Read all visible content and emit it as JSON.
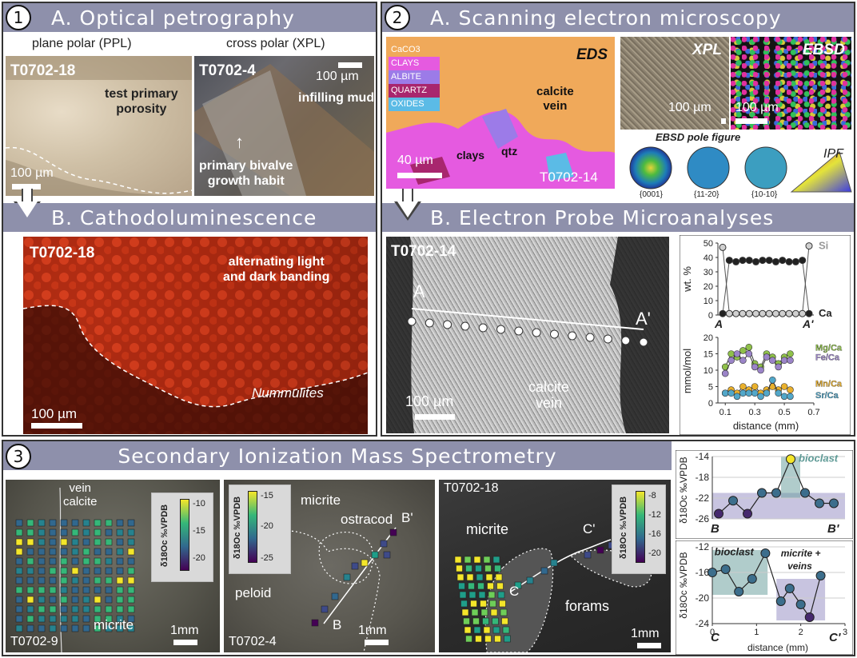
{
  "panel1": {
    "number": "1",
    "titleA": "A.  Optical petrography",
    "ppl_label": "plane polar (PPL)",
    "xpl_label": "cross polar (XPL)",
    "img1_sample": "T0702-18",
    "img1_text": "test primary\nporosity",
    "img1_scale": "100 µm",
    "img2_sample": "T0702-4",
    "img2_scale": "100 µm",
    "img2_text1": "infilling mud",
    "img2_text2": "primary bivalve\ngrowth habit",
    "titleB": "B.  Cathodoluminescence",
    "cl_sample": "T0702-18",
    "cl_text": "alternating light\nand dark banding",
    "cl_italic": "Nummulites",
    "cl_scale": "100 µm"
  },
  "panel2": {
    "number": "2",
    "titleA": "A.  Scanning electron microscopy",
    "eds_label": "EDS",
    "legend": [
      "CaCO3",
      "CLAYS",
      "ALBITE",
      "QUARTZ",
      "OXIDES"
    ],
    "legend_colors": [
      "#f0a95a",
      "#e55ae0",
      "#9c7be8",
      "#a8266e",
      "#5bbbe6"
    ],
    "eds_text_vein": "calcite\nvein",
    "eds_text_clays": "clays",
    "eds_text_qtz": "qtz",
    "eds_scale": "40 µm",
    "eds_sample": "T0702-14",
    "xpl_label": "XPL",
    "ebsd_label": "EBSD",
    "xpl_scale": "100 µm",
    "ebsd_scale": "100 µm",
    "pole_title": "EBSD pole figure",
    "pole_labels": [
      "{0001}",
      "{11-20}",
      "{10-10}"
    ],
    "ipf_label": "IPF",
    "titleB": "B.  Electron Probe Microanalyses",
    "epma_sample": "T0702-14",
    "epma_A": "A",
    "epma_A2": "A'",
    "epma_scale": "100 µm",
    "epma_vein": "calcite\nvein"
  },
  "panel3": {
    "number": "3",
    "title": "Secondary Ionization Mass Spectrometry",
    "img1_vein": "vein\ncalcite",
    "img1_micrite": "micrite",
    "img1_sample": "T0702-9",
    "img1_scale": "1mm",
    "img1_cbar_ticks": [
      "-10",
      "-15",
      "-20"
    ],
    "img2_micrite": "micrite",
    "img2_ostracod": "ostracod",
    "img2_peloid": "peloid",
    "img2_B": "B",
    "img2_B2": "B'",
    "img2_sample": "T0702-4",
    "img2_scale": "1mm",
    "img2_cbar_ticks": [
      "-15",
      "-20",
      "-25"
    ],
    "img3_sample": "T0702-18",
    "img3_micrite": "micrite",
    "img3_C": "C",
    "img3_C2": "C'",
    "img3_forams": "forams",
    "img3_scale": "1mm",
    "img3_cbar_ticks": [
      "-8",
      "-12",
      "-16",
      "-20"
    ],
    "cbar_label": "δ18Oc ‰VPDB"
  },
  "chart_data": [
    {
      "type": "line",
      "ylabel": "wt. %",
      "xlabels": [
        "A",
        "A'"
      ],
      "ylim": [
        0,
        50
      ],
      "yticks": [
        0,
        10,
        20,
        30,
        40,
        50
      ],
      "series": [
        {
          "name": "Si",
          "color": "#d0d0d0",
          "values": [
            47,
            1,
            1,
            1,
            1,
            1,
            1,
            1,
            1,
            1,
            1,
            1,
            1,
            48
          ]
        },
        {
          "name": "Ca",
          "color": "#222222",
          "values": [
            1,
            38,
            37,
            38,
            38,
            37,
            38,
            38,
            37,
            38,
            37,
            37,
            38,
            1
          ]
        }
      ]
    },
    {
      "type": "line",
      "ylabel": "mmol/mol",
      "xlabel": "distance (mm)",
      "ylim": [
        0,
        20
      ],
      "yticks": [
        0,
        5,
        10,
        15,
        20
      ],
      "xlim": [
        0.05,
        0.7
      ],
      "xticks": [
        0.1,
        0.3,
        0.5,
        0.7
      ],
      "x": [
        0.1,
        0.14,
        0.18,
        0.22,
        0.26,
        0.3,
        0.34,
        0.38,
        0.42,
        0.46,
        0.5,
        0.54
      ],
      "series": [
        {
          "name": "Mg/Ca",
          "color": "#8fc04a",
          "values": [
            11,
            15,
            14,
            16,
            17,
            12,
            11,
            15,
            14,
            12,
            14,
            15
          ]
        },
        {
          "name": "Fe/Ca",
          "color": "#9b84c8",
          "values": [
            9,
            13,
            15,
            13,
            15,
            11,
            10,
            14,
            13,
            11,
            13,
            13
          ]
        },
        {
          "name": "Mn/Ca",
          "color": "#e9b02c",
          "values": [
            3,
            4,
            3,
            5,
            4,
            5,
            3,
            4,
            5,
            4,
            5,
            4
          ]
        },
        {
          "name": "Sr/Ca",
          "color": "#52a7c9",
          "values": [
            3,
            3,
            2,
            3,
            3,
            3,
            2,
            3,
            7,
            3,
            2,
            2
          ]
        }
      ]
    },
    {
      "type": "line",
      "ylabel": "δ18Oc ‰VPDB",
      "xlabels": [
        "B",
        "B'"
      ],
      "ylim": [
        -26,
        -14
      ],
      "yticks": [
        -14,
        -18,
        -22,
        -26
      ],
      "annotation": "bioclast",
      "values": [
        -25,
        -22.5,
        -25,
        -21,
        -21,
        -14.5,
        -21,
        -23,
        -23
      ],
      "colors": [
        "#46296e",
        "#3c6e8c",
        "#46296e",
        "#3c6e8c",
        "#3c6e8c",
        "#f4e62a",
        "#3c6e8c",
        "#3c6e8c",
        "#3c6e8c"
      ]
    },
    {
      "type": "line",
      "ylabel": "δ18Oc ‰VPDB",
      "xlabel": "distance (mm)",
      "xlabels": [
        "C",
        "C'"
      ],
      "ylim": [
        -24,
        -12
      ],
      "yticks": [
        -12,
        -16,
        -20,
        -24
      ],
      "xlim": [
        0,
        3
      ],
      "xticks": [
        0,
        1,
        2,
        3
      ],
      "annotations": [
        "bioclast",
        "micrite +\nveins"
      ],
      "x": [
        0.0,
        0.3,
        0.6,
        0.9,
        1.2,
        1.55,
        1.75,
        2.0,
        2.2,
        2.45
      ],
      "values": [
        -16,
        -15.5,
        -19,
        -17,
        -13,
        -20.5,
        -18.5,
        -21,
        -23,
        -16.5
      ],
      "colors": [
        "#3c6e8c",
        "#3c6e8c",
        "#3c6e8c",
        "#3c6e8c",
        "#3c6e8c",
        "#3c6e8c",
        "#3c6e8c",
        "#3c6e8c",
        "#46296e",
        "#3c6e8c"
      ]
    }
  ]
}
